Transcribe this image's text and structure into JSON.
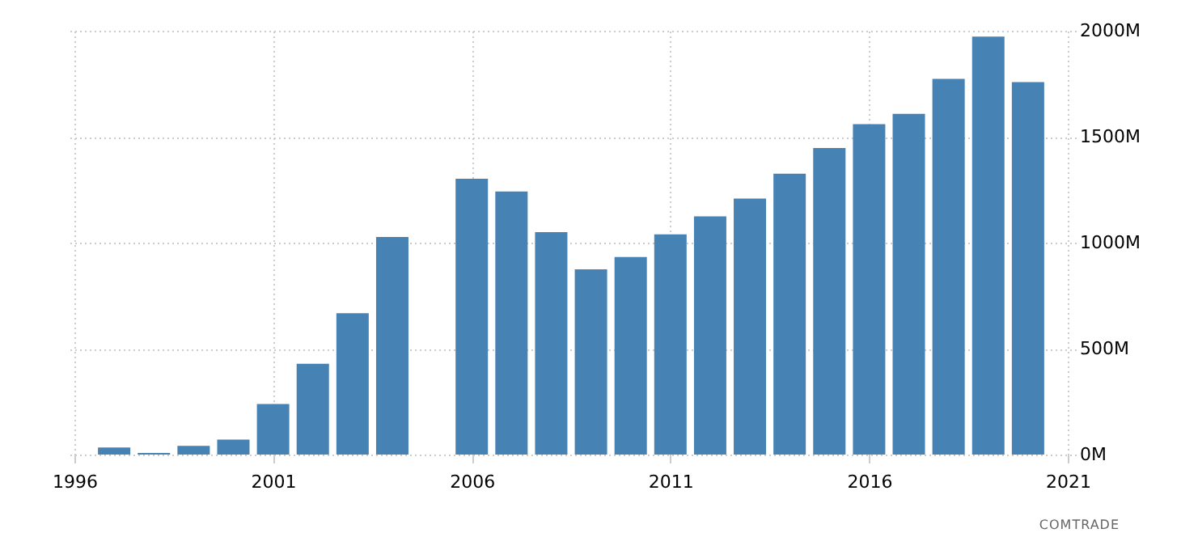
{
  "chart_data": {
    "type": "bar",
    "x": [
      1997,
      1998,
      1999,
      2000,
      2001,
      2002,
      2003,
      2004,
      2005,
      2006,
      2007,
      2008,
      2009,
      2010,
      2011,
      2012,
      2013,
      2014,
      2015,
      2016,
      2017,
      2018,
      2019,
      2020
    ],
    "values": [
      33,
      8,
      41,
      71,
      239,
      428,
      667,
      1027,
      null,
      1302,
      1241,
      1050,
      874,
      932,
      1039,
      1124,
      1208,
      1325,
      1447,
      1559,
      1608,
      1773,
      1972,
      1758
    ],
    "color": "#4682b4",
    "xlim": [
      1996,
      2021
    ],
    "xticks": [
      1996,
      2001,
      2006,
      2011,
      2016,
      2021
    ],
    "ylim": [
      0,
      2000
    ],
    "yticks": [
      {
        "value": 0,
        "label": "0M"
      },
      {
        "value": 500,
        "label": "500M"
      },
      {
        "value": 1000,
        "label": "1000M"
      },
      {
        "value": 1500,
        "label": "1500M"
      },
      {
        "value": 2000,
        "label": "2000M"
      }
    ],
    "grid": true,
    "annotations": [
      "COMTRADE"
    ]
  }
}
